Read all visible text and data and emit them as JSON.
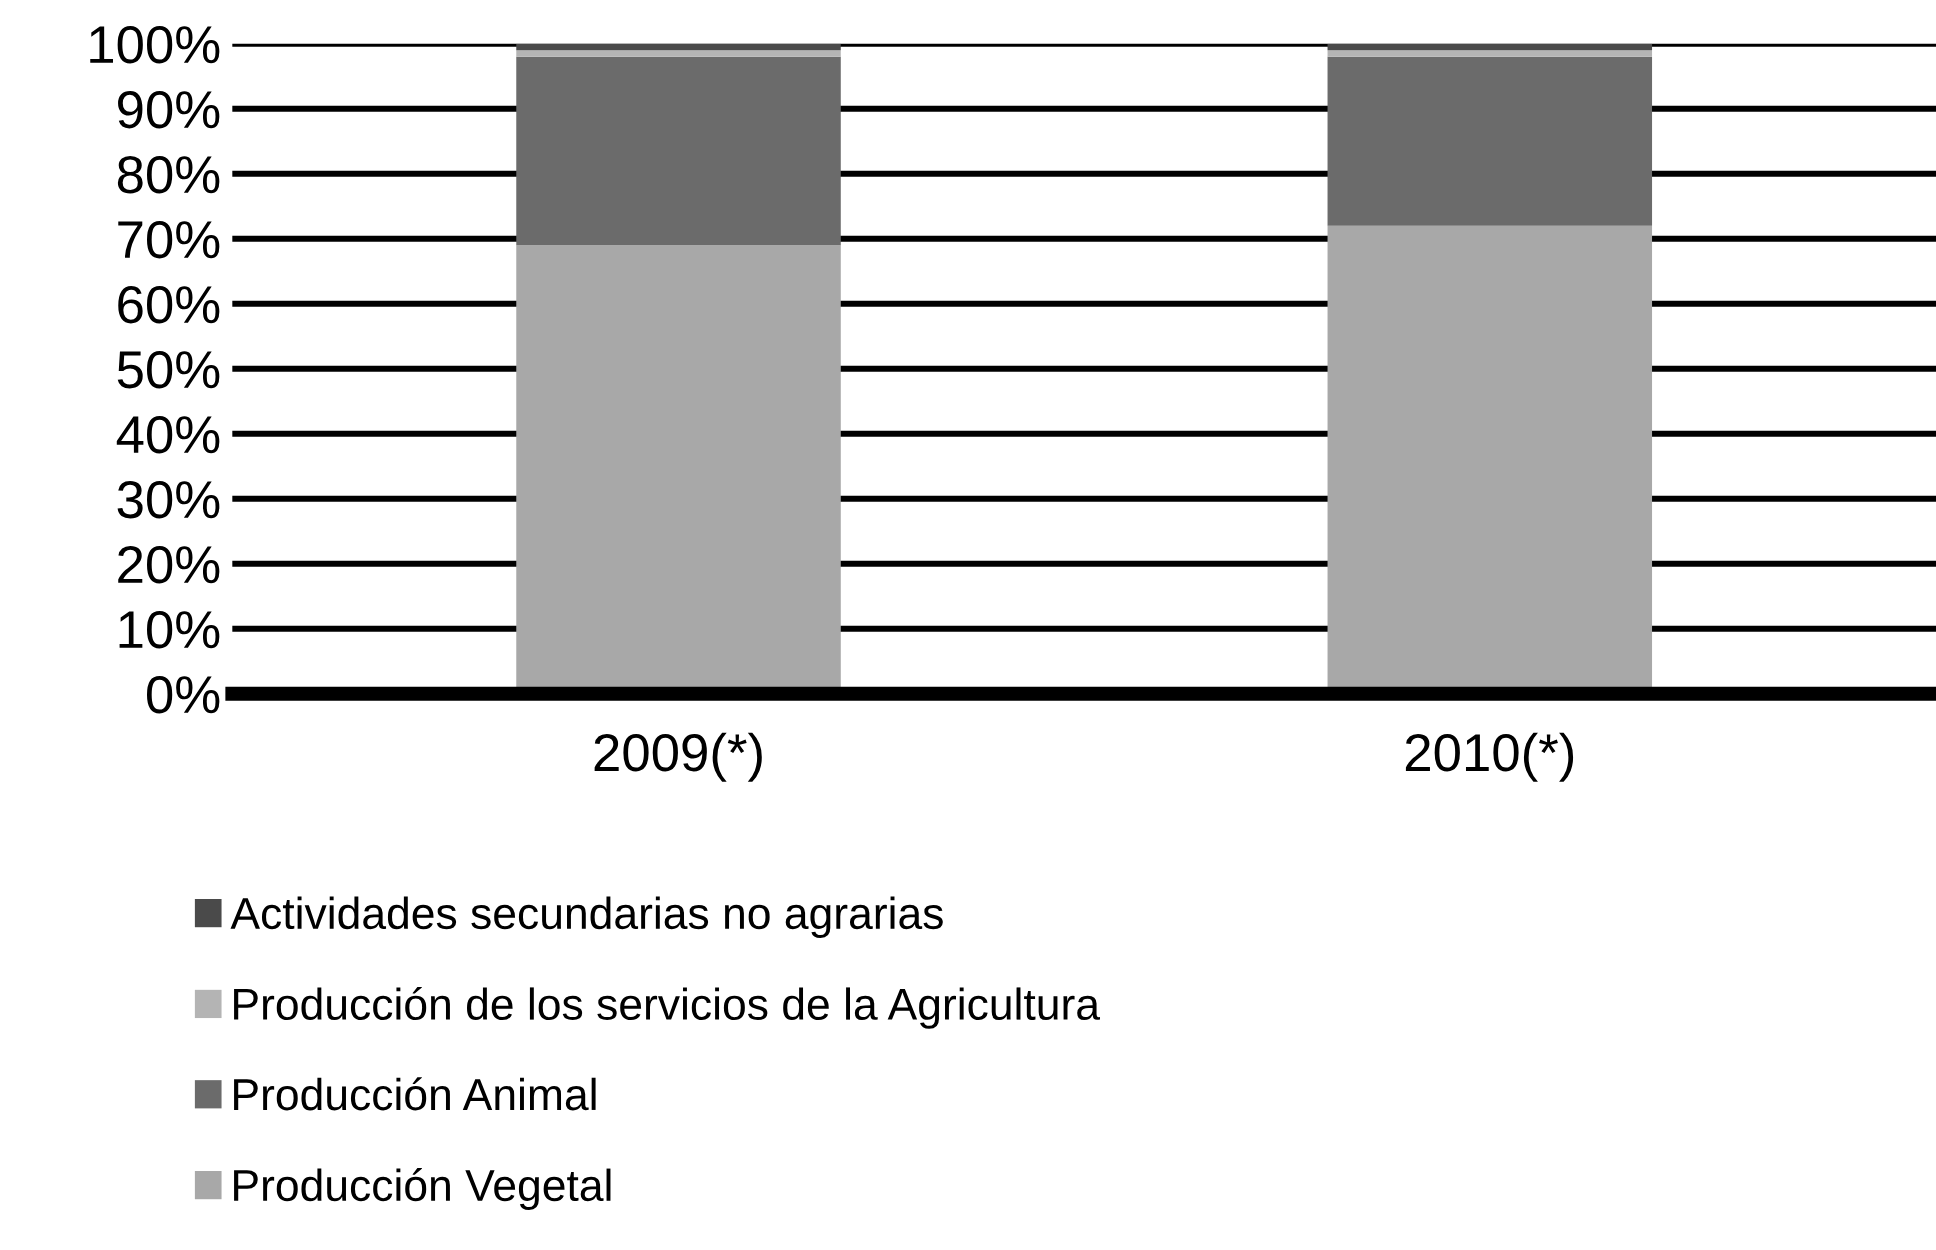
{
  "chart_data": {
    "type": "bar",
    "stacked": true,
    "categories": [
      "2009(*)",
      "2010(*)"
    ],
    "series": [
      {
        "name": "Producción Vegetal",
        "color": "#a8a8a8",
        "values": [
          69,
          72
        ]
      },
      {
        "name": "Producción Animal",
        "color": "#6b6b6b",
        "values": [
          29,
          26
        ]
      },
      {
        "name": "Producción de los servicios de la Agricultura",
        "color": "#b4b4b4",
        "values": [
          1,
          1
        ]
      },
      {
        "name": "Actividades secundarias no agrarias",
        "color": "#4a4a4a",
        "values": [
          1,
          1
        ]
      }
    ],
    "ylim": [
      0,
      100
    ],
    "yticks": [
      {
        "value": 0,
        "label": "0%"
      },
      {
        "value": 10,
        "label": "10%"
      },
      {
        "value": 20,
        "label": "20%"
      },
      {
        "value": 30,
        "label": "30%"
      },
      {
        "value": 40,
        "label": "40%"
      },
      {
        "value": 50,
        "label": "50%"
      },
      {
        "value": 60,
        "label": "60%"
      },
      {
        "value": 70,
        "label": "70%"
      },
      {
        "value": 80,
        "label": "80%"
      },
      {
        "value": 90,
        "label": "90%"
      },
      {
        "value": 100,
        "label": "100%"
      }
    ],
    "grid": "y",
    "legend": "bottom left"
  }
}
